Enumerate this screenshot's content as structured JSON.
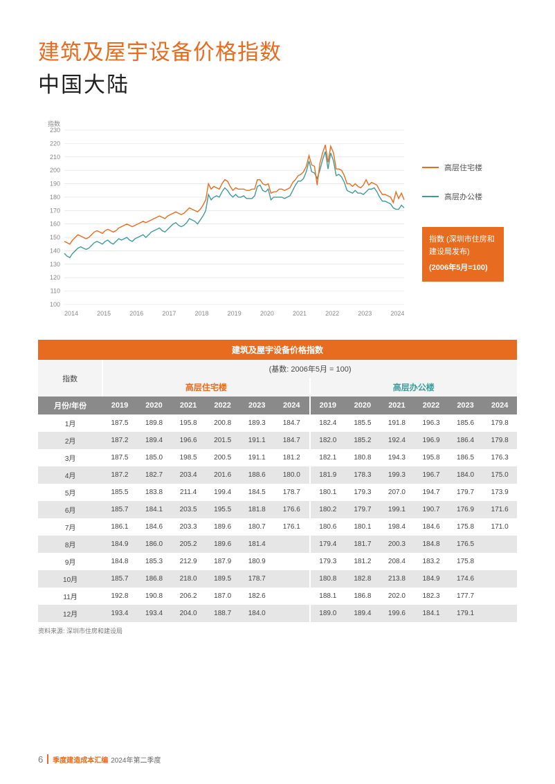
{
  "colors": {
    "accent": "#e86c1f",
    "series1": "#e86c1f",
    "series2": "#3f9a9a",
    "grid": "#dcdcdc",
    "axis_text": "#888888",
    "table_header_bg": "#e86c1f",
    "year_header_bg": "#8a8a8a",
    "row_alt_bg": "#e6e6e6",
    "row_bg": "#ffffff",
    "idx_cell_bg": "#f4f4f4"
  },
  "title": {
    "line1": "建筑及屋宇设备价格指数",
    "line2": "中国大陆"
  },
  "legend": {
    "s1": "高层住宅楼",
    "s2": "高层办公楼"
  },
  "infobox": {
    "line1": "指数 (深圳市住房和建设局发布)",
    "line2": "(2006年5月=100)"
  },
  "chart": {
    "type": "line",
    "y_title": "指数",
    "background": "#ffffff",
    "grid_color": "#dcdcdc",
    "line_width": 1.4,
    "ylim": [
      100,
      230
    ],
    "ytick_step": 10,
    "x_labels": [
      "2014",
      "2015",
      "2016",
      "2017",
      "2018",
      "2019",
      "2020",
      "2021",
      "2022",
      "2023",
      "2024"
    ],
    "x_monthly_count": 126,
    "series1_color": "#e86c1f",
    "series2_color": "#3f9a9a",
    "series1": [
      147,
      146,
      145,
      148,
      150,
      152,
      151,
      150,
      149,
      150,
      152,
      154,
      155,
      154,
      153,
      155,
      156,
      155,
      154,
      155,
      157,
      158,
      159,
      160,
      159,
      158,
      159,
      160,
      161,
      162,
      161,
      162,
      163,
      164,
      165,
      166,
      165,
      164,
      166,
      167,
      168,
      169,
      168,
      167,
      168,
      170,
      172,
      171,
      170,
      169,
      171,
      174,
      178,
      190,
      186,
      188,
      187,
      186,
      190,
      193,
      192,
      188,
      185,
      187,
      186,
      186,
      186,
      185,
      185,
      186,
      186,
      193,
      193,
      190,
      189,
      190,
      183,
      184,
      184,
      186,
      186,
      185,
      186,
      187,
      191,
      193,
      196,
      197,
      199,
      203,
      211,
      204,
      203,
      189,
      205,
      213,
      219,
      206,
      218,
      213,
      201,
      201,
      200,
      196,
      190,
      190,
      188,
      190,
      188,
      187,
      189,
      193,
      189,
      191,
      190,
      189,
      185,
      182,
      182,
      181,
      180,
      176,
      184,
      179,
      183,
      178
    ],
    "series2": [
      138,
      136,
      135,
      138,
      140,
      142,
      143,
      142,
      141,
      142,
      144,
      146,
      147,
      146,
      145,
      147,
      148,
      146,
      145,
      147,
      149,
      148,
      149,
      150,
      148,
      147,
      149,
      150,
      151,
      152,
      150,
      152,
      154,
      155,
      156,
      157,
      155,
      154,
      156,
      158,
      160,
      161,
      159,
      158,
      159,
      161,
      164,
      163,
      162,
      160,
      163,
      166,
      170,
      182,
      178,
      180,
      181,
      180,
      184,
      187,
      185,
      182,
      180,
      182,
      180,
      180,
      181,
      179,
      179,
      179,
      181,
      188,
      189,
      185,
      184,
      186,
      178,
      180,
      180,
      180,
      180,
      179,
      180,
      181,
      185,
      189,
      192,
      192,
      194,
      199,
      207,
      199,
      198,
      194,
      200,
      208,
      214,
      201,
      213,
      207,
      196,
      197,
      195,
      191,
      185,
      184,
      183,
      185,
      183,
      183,
      182,
      184,
      186,
      186,
      187,
      184,
      180,
      177,
      177,
      176,
      175,
      172,
      171,
      171,
      174,
      172
    ]
  },
  "table": {
    "title": "建筑及屋宇设备价格指数",
    "index_label": "指数",
    "base_label": "(基数: 2006年5月 = 100)",
    "series1_hdr": "高层住宅楼",
    "series2_hdr": "高层办公楼",
    "month_hdr": "月份/年份",
    "years": [
      "2019",
      "2020",
      "2021",
      "2022",
      "2023",
      "2024"
    ],
    "months": [
      "1月",
      "2月",
      "3月",
      "4月",
      "5月",
      "6月",
      "7月",
      "8月",
      "9月",
      "10月",
      "11月",
      "12月"
    ],
    "data_s1": [
      [
        "187.5",
        "189.8",
        "195.8",
        "200.8",
        "189.3",
        "184.7"
      ],
      [
        "187.2",
        "189.4",
        "196.6",
        "201.5",
        "191.1",
        "184.7"
      ],
      [
        "187.5",
        "185.0",
        "198.5",
        "200.5",
        "191.1",
        "181.2"
      ],
      [
        "187.2",
        "182.7",
        "203.4",
        "201.6",
        "188.6",
        "180.0"
      ],
      [
        "185.5",
        "183.8",
        "211.4",
        "199.4",
        "184.5",
        "178.7"
      ],
      [
        "185.7",
        "184.1",
        "203.5",
        "195.5",
        "181.8",
        "176.6"
      ],
      [
        "186.1",
        "184.6",
        "203.3",
        "189.6",
        "180.7",
        "176.1"
      ],
      [
        "184.9",
        "186.0",
        "205.2",
        "189.6",
        "181.4",
        ""
      ],
      [
        "184.8",
        "185.3",
        "212.9",
        "187.9",
        "180.9",
        ""
      ],
      [
        "185.7",
        "186.8",
        "218.0",
        "189.5",
        "178.7",
        ""
      ],
      [
        "192.8",
        "190.8",
        "206.2",
        "187.0",
        "182.6",
        ""
      ],
      [
        "193.4",
        "193.4",
        "204.0",
        "188.7",
        "184.0",
        ""
      ]
    ],
    "data_s2": [
      [
        "182.4",
        "185.5",
        "191.8",
        "196.3",
        "185.6",
        "179.8"
      ],
      [
        "182.0",
        "185.2",
        "192.4",
        "196.9",
        "186.4",
        "179.8"
      ],
      [
        "182.1",
        "180.8",
        "194.3",
        "195.8",
        "186.5",
        "176.3"
      ],
      [
        "181.9",
        "178.3",
        "199.3",
        "196.7",
        "184.0",
        "175.0"
      ],
      [
        "180.1",
        "179.3",
        "207.0",
        "194.7",
        "179.7",
        "173.9"
      ],
      [
        "180.2",
        "179.7",
        "199.1",
        "190.7",
        "176.9",
        "171.6"
      ],
      [
        "180.6",
        "180.1",
        "198.4",
        "184.6",
        "175.8",
        "171.0"
      ],
      [
        "179.4",
        "181.7",
        "200.3",
        "184.8",
        "176.5",
        ""
      ],
      [
        "179.3",
        "181.2",
        "208.4",
        "183.2",
        "175.8",
        ""
      ],
      [
        "180.8",
        "182.8",
        "213.8",
        "184.9",
        "174.6",
        ""
      ],
      [
        "188.1",
        "186.8",
        "202.0",
        "182.3",
        "177.7",
        ""
      ],
      [
        "189.0",
        "189.4",
        "199.6",
        "184.1",
        "179.1",
        ""
      ]
    ],
    "source": "资料来源: 深圳市住房和建设局"
  },
  "footer": {
    "page": "6",
    "t1": "季度建造成本汇编",
    "t2": "2024年第二季度"
  }
}
